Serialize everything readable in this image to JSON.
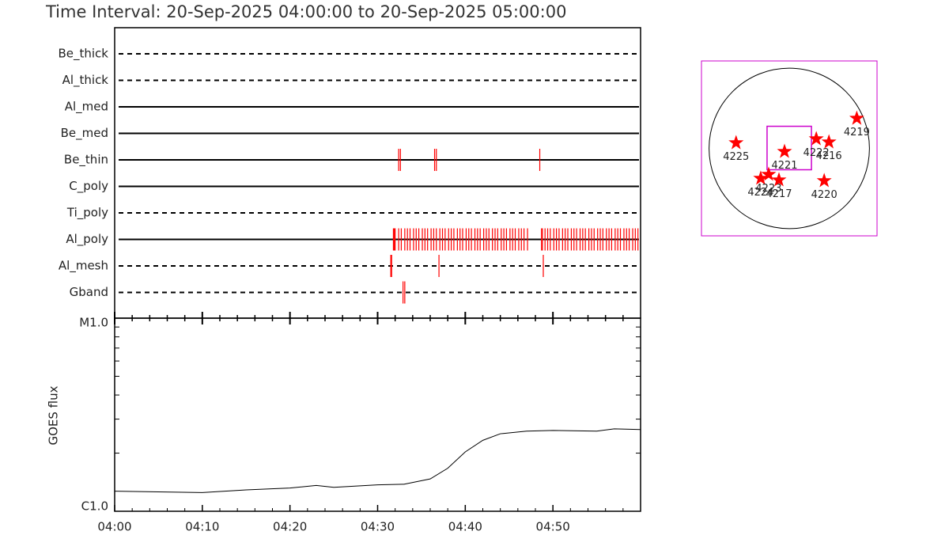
{
  "chart_data": [
    {
      "type": "event",
      "title": "Time Interval: 20-Sep-2025 04:00:00 to 20-Sep-2025 05:00:00",
      "xlim": [
        0,
        60
      ],
      "color": "#ff0000",
      "channels": [
        {
          "name": "Be_thick",
          "dashed": true,
          "events": []
        },
        {
          "name": "Al_thick",
          "dashed": true,
          "events": []
        },
        {
          "name": "Al_med",
          "dashed": false,
          "events": []
        },
        {
          "name": "Be_med",
          "dashed": false,
          "events": []
        },
        {
          "name": "Be_thin",
          "dashed": false,
          "events": [
            32.4,
            32.6,
            36.5,
            36.7,
            48.5
          ]
        },
        {
          "name": "C_poly",
          "dashed": false,
          "events": []
        },
        {
          "name": "Ti_poly",
          "dashed": true,
          "events": []
        },
        {
          "name": "Al_poly",
          "dashed": false,
          "events": [
            31.8,
            31.9,
            32.0,
            32.4,
            32.7,
            33.1,
            33.4,
            33.7,
            34.1,
            34.4,
            34.7,
            35.1,
            35.4,
            35.7,
            36.1,
            36.4,
            36.7,
            37.1,
            37.4,
            37.7,
            38.1,
            38.4,
            38.7,
            39.1,
            39.4,
            39.7,
            40.1,
            40.4,
            40.7,
            41.1,
            41.4,
            41.7,
            42.1,
            42.4,
            42.7,
            43.1,
            43.4,
            43.7,
            44.1,
            44.4,
            44.7,
            45.1,
            45.4,
            45.7,
            46.1,
            46.4,
            46.7,
            47.1,
            48.7,
            48.8,
            49.1,
            49.4,
            49.7,
            50.1,
            50.4,
            50.7,
            51.1,
            51.4,
            51.7,
            52.1,
            52.4,
            52.7,
            53.1,
            53.4,
            53.7,
            54.1,
            54.4,
            54.7,
            55.1,
            55.4,
            55.7,
            56.1,
            56.4,
            56.7,
            57.1,
            57.4,
            57.7,
            58.1,
            58.4,
            58.7,
            59.1,
            59.4,
            59.7
          ]
        },
        {
          "name": "Al_mesh",
          "dashed": true,
          "events": [
            31.5,
            31.6,
            37.0,
            48.9
          ]
        },
        {
          "name": "Gband",
          "dashed": true,
          "events": [
            32.9,
            33.1
          ]
        }
      ]
    },
    {
      "type": "line",
      "y_label": "GOES flux",
      "log_y": true,
      "xlim": [
        0,
        60
      ],
      "xticks": [
        {
          "value": 0,
          "label": "04:00"
        },
        {
          "value": 10,
          "label": "04:10"
        },
        {
          "value": 20,
          "label": "04:20"
        },
        {
          "value": 30,
          "label": "04:30"
        },
        {
          "value": 40,
          "label": "04:40"
        },
        {
          "value": 50,
          "label": "04:50"
        }
      ],
      "xminorticks": [
        2,
        4,
        6,
        8,
        12,
        14,
        16,
        18,
        22,
        24,
        26,
        28,
        32,
        34,
        36,
        38,
        42,
        44,
        46,
        48,
        52,
        54,
        56,
        58
      ],
      "ylim": [
        1e-06,
        1e-05
      ],
      "yticks": [
        {
          "value": 1e-06,
          "label": "C1.0"
        },
        {
          "value": 1e-05,
          "label": "M1.0"
        }
      ],
      "yminorticks": [
        2e-06,
        3e-06,
        4e-06,
        5e-06,
        6e-06,
        7e-06,
        8e-06,
        9e-06
      ],
      "color": "#000000",
      "x": [
        0,
        10,
        15,
        20,
        23,
        25,
        30,
        33,
        36,
        38,
        40,
        42,
        44,
        47,
        50,
        55,
        57,
        60
      ],
      "values": [
        1.27e-06,
        1.25e-06,
        1.29e-06,
        1.32e-06,
        1.36e-06,
        1.33e-06,
        1.37e-06,
        1.38e-06,
        1.47e-06,
        1.67e-06,
        2.03e-06,
        2.33e-06,
        2.52e-06,
        2.6e-06,
        2.62e-06,
        2.6e-06,
        2.67e-06,
        2.65e-06
      ]
    },
    {
      "type": "scatter",
      "xlim": [
        -1040,
        1040
      ],
      "ylim": [
        -1040,
        1040
      ],
      "frame_color": "#cc00cc",
      "sun_radius": 950,
      "fov_x": [
        -263,
        263
      ],
      "fov_y": [
        -254,
        263
      ],
      "color": "#ff0000",
      "labels": [
        "4225",
        "4221",
        "4222",
        "4216",
        "4219",
        "4220",
        "4224",
        "4223",
        "4217"
      ],
      "x": [
        -630,
        -56,
        320,
        470,
        800,
        414,
        -338,
        -244,
        -122
      ],
      "values": [
        66,
        -38,
        113,
        75,
        357,
        -385,
        -357,
        -310,
        -376
      ]
    }
  ]
}
